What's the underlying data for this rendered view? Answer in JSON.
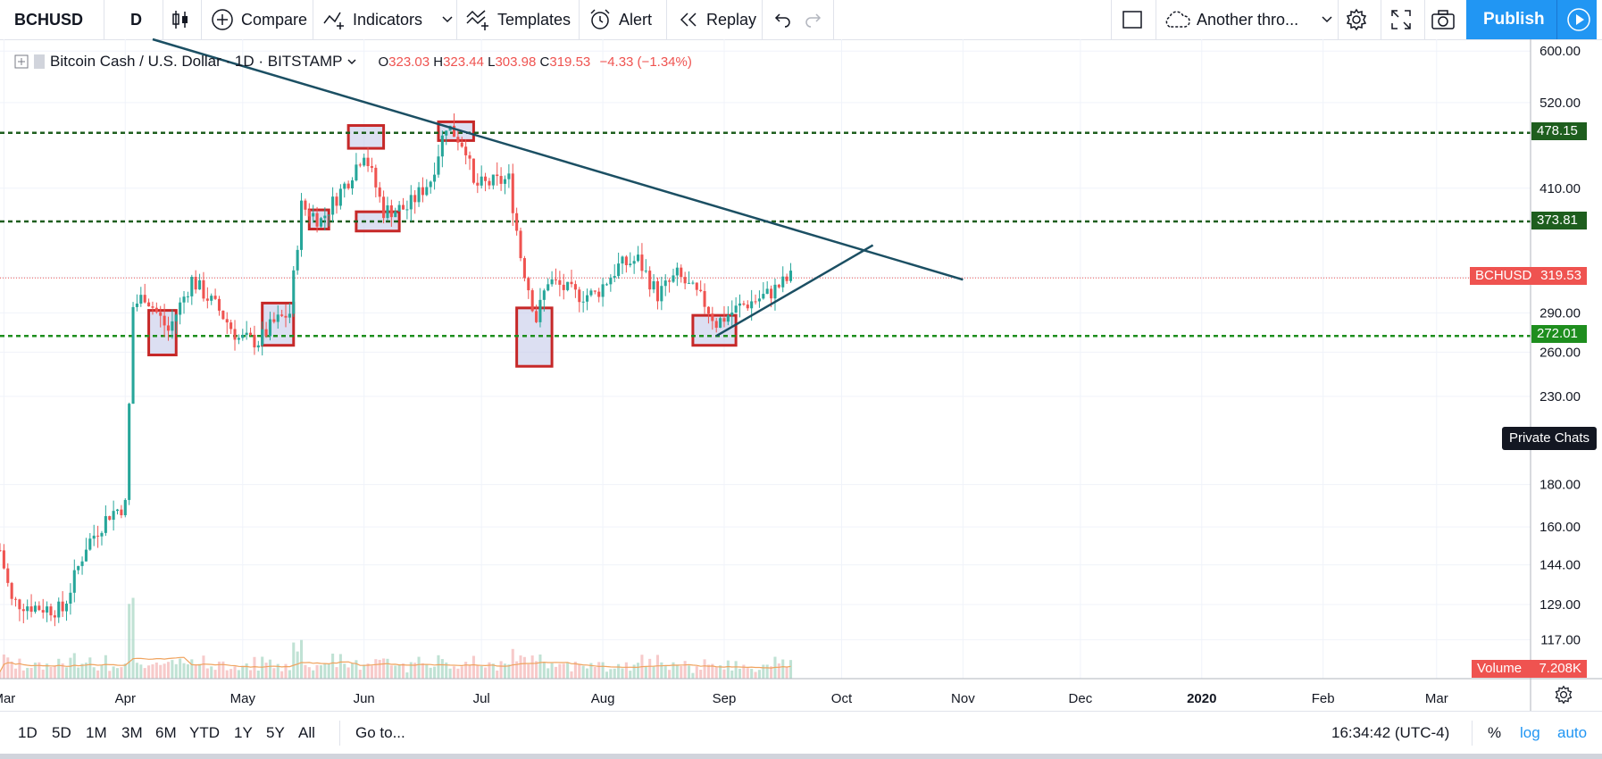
{
  "toolbar": {
    "symbol": "BCHUSD",
    "interval": "D",
    "compare": "Compare",
    "indicators": "Indicators",
    "templates": "Templates",
    "alert": "Alert",
    "replay": "Replay",
    "layout_name": "Another thro...",
    "publish": "Publish"
  },
  "legend": {
    "title": "Bitcoin Cash / U.S. Dollar · 1D · BITSTAMP",
    "o_label": "O",
    "o": "323.03",
    "h_label": "H",
    "h": "323.44",
    "l_label": "L",
    "l": "303.98",
    "c_label": "C",
    "c": "319.53",
    "change": "−4.33 (−1.34%)"
  },
  "price_tags": {
    "last_symbol": "BCHUSD",
    "last_value": "319.53",
    "volume_label": "Volume",
    "volume_value": "7.208K",
    "level_high": "478.15",
    "level_mid": "373.81",
    "level_low": "272.01"
  },
  "private_chats": "Private Chats",
  "bottom": {
    "ranges": [
      "1D",
      "5D",
      "1M",
      "3M",
      "6M",
      "YTD",
      "1Y",
      "5Y",
      "All"
    ],
    "goto": "Go to...",
    "time": "16:34:42 (UTC-4)",
    "percent": "%",
    "log": "log",
    "auto": "auto"
  },
  "colors": {
    "up": "#26a69a",
    "down": "#ef5350",
    "trendline": "#1b4f63",
    "level_dark": "#1e5e1e",
    "level_green": "#1e8e1e",
    "box_border": "#c62828",
    "box_fill": "#c5cae9",
    "accent": "#2196f3"
  },
  "chart_data": {
    "type": "candlestick",
    "y_scale": "log",
    "y_ticks": [
      "600.00",
      "520.00",
      "410.00",
      "320.00",
      "290.00",
      "260.00",
      "230.00",
      "180.00",
      "160.00",
      "144.00",
      "129.00",
      "117.00"
    ],
    "x_ticks": [
      "Mar",
      "Apr",
      "May",
      "Jun",
      "Jul",
      "Aug",
      "Sep",
      "Oct",
      "Nov",
      "Dec",
      "2020",
      "Feb",
      "Mar"
    ],
    "x_range": [
      "2019-02-28",
      "2020-03-25"
    ],
    "y_range": [
      105,
      620
    ],
    "price_anchors": [
      [
        "2019-02-28",
        150
      ],
      [
        "2019-03-03",
        130
      ],
      [
        "2019-03-10",
        128
      ],
      [
        "2019-03-16",
        127
      ],
      [
        "2019-03-22",
        152
      ],
      [
        "2019-03-28",
        166
      ],
      [
        "2019-04-01",
        170
      ],
      [
        "2019-04-03",
        295
      ],
      [
        "2019-04-06",
        305
      ],
      [
        "2019-04-12",
        276
      ],
      [
        "2019-04-18",
        318
      ],
      [
        "2019-04-25",
        292
      ],
      [
        "2019-04-30",
        270
      ],
      [
        "2019-05-05",
        268
      ],
      [
        "2019-05-09",
        282
      ],
      [
        "2019-05-13",
        290
      ],
      [
        "2019-05-16",
        390
      ],
      [
        "2019-05-21",
        375
      ],
      [
        "2019-05-28",
        420
      ],
      [
        "2019-06-01",
        455
      ],
      [
        "2019-06-06",
        385
      ],
      [
        "2019-06-12",
        388
      ],
      [
        "2019-06-18",
        420
      ],
      [
        "2019-06-22",
        490
      ],
      [
        "2019-06-27",
        460
      ],
      [
        "2019-06-29",
        412
      ],
      [
        "2019-07-08",
        420
      ],
      [
        "2019-07-11",
        340
      ],
      [
        "2019-07-15",
        285
      ],
      [
        "2019-07-18",
        318
      ],
      [
        "2019-07-25",
        305
      ],
      [
        "2019-07-30",
        305
      ],
      [
        "2019-08-05",
        330
      ],
      [
        "2019-08-10",
        336
      ],
      [
        "2019-08-15",
        305
      ],
      [
        "2019-08-20",
        322
      ],
      [
        "2019-08-27",
        298
      ],
      [
        "2019-08-30",
        282
      ],
      [
        "2019-09-05",
        295
      ],
      [
        "2019-09-12",
        305
      ],
      [
        "2019-09-18",
        320
      ]
    ],
    "volume_ma_peak_date": "2019-05-22",
    "horizontal_levels": [
      478.15,
      373.81,
      272.01
    ],
    "last_price": 319.53,
    "trendlines": [
      {
        "from": [
          "2019-04-08",
          620
        ],
        "to": [
          "2019-11-01",
          318
        ]
      },
      {
        "from": [
          "2019-08-30",
          272
        ],
        "to": [
          "2019-10-09",
          350
        ]
      }
    ],
    "boxes": [
      {
        "x0": "2019-04-07",
        "x1": "2019-04-14",
        "y0": 258,
        "y1": 292
      },
      {
        "x0": "2019-05-06",
        "x1": "2019-05-14",
        "y0": 265,
        "y1": 298
      },
      {
        "x0": "2019-05-18",
        "x1": "2019-05-23",
        "y0": 366,
        "y1": 386
      },
      {
        "x0": "2019-05-28",
        "x1": "2019-06-06",
        "y0": 458,
        "y1": 488
      },
      {
        "x0": "2019-05-30",
        "x1": "2019-06-10",
        "y0": 364,
        "y1": 384
      },
      {
        "x0": "2019-06-20",
        "x1": "2019-06-29",
        "y0": 468,
        "y1": 493
      },
      {
        "x0": "2019-07-10",
        "x1": "2019-07-19",
        "y0": 250,
        "y1": 294
      },
      {
        "x0": "2019-08-24",
        "x1": "2019-09-04",
        "y0": 265,
        "y1": 288
      }
    ]
  }
}
